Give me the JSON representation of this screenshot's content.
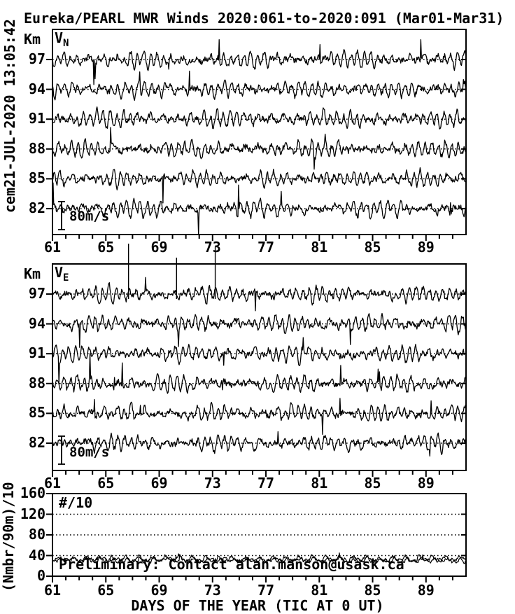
{
  "meta": {
    "timestamp_vertical": "cem21-JUL-2020 13:05:42"
  },
  "title": "Eureka/PEARL MWR Winds 2020:061-to-2020:091 (Mar01-Mar31)",
  "colors": {
    "foreground": "#000000",
    "background": "#ffffff"
  },
  "x_axis": {
    "label": "DAYS OF THE YEAR (TIC AT 0 UT)",
    "range": [
      61,
      92
    ],
    "major_ticks": [
      61,
      65,
      69,
      73,
      77,
      81,
      85,
      89
    ],
    "minor_step": 1
  },
  "wind_panels": [
    {
      "id": "vn",
      "component": "V",
      "component_sub": "N",
      "y_unit": "Km",
      "altitudes_km": [
        97,
        94,
        91,
        88,
        85,
        82
      ],
      "scale_bar_label": "80m/s",
      "scale_bar_ms": 80,
      "seed": 11,
      "spikes_above_top": []
    },
    {
      "id": "ve",
      "component": "V",
      "component_sub": "E",
      "y_unit": "Km",
      "altitudes_km": [
        97,
        94,
        91,
        88,
        85,
        82
      ],
      "scale_bar_label": "80m/s",
      "scale_bar_ms": 80,
      "seed": 57,
      "spikes_above_top": [
        {
          "day": 66.7,
          "top_y": 348
        },
        {
          "day": 70.3,
          "top_y": 368
        },
        {
          "day": 73.2,
          "top_y": 352
        }
      ]
    }
  ],
  "count_panel": {
    "ylabel": "(Nmbr/90m)/10",
    "inplot_label": "#/10",
    "yticks": [
      0,
      40,
      80,
      120,
      160
    ],
    "gridlines": [
      40,
      80,
      120
    ],
    "series": [
      {
        "seed": 91,
        "mean": 31
      },
      {
        "seed": 137,
        "mean": 33.5
      }
    ],
    "note": "Preliminary: Contact alan.manson@usask.ca"
  },
  "chart_data": [
    {
      "type": "line",
      "panel": "VN northward wind",
      "title": "Eureka/PEARL MWR Winds 2020:061-to-2020:091 (Mar01-Mar31)",
      "xlabel": "DAYS OF THE YEAR (TIC AT 0 UT)",
      "x_range": [
        61,
        92
      ],
      "x_ticks": [
        61,
        65,
        69,
        73,
        77,
        81,
        85,
        89
      ],
      "ylabel": "Km",
      "series_baselines_km": [
        97,
        94,
        91,
        88,
        85,
        82
      ],
      "amplitude_scale_bar": "80m/s",
      "series_description": "Noisy semidiurnal-tide wind oscillations about a dotted zero line at each altitude; typical amplitude 10-40 m/s, occasional spikes to ~80 m/s",
      "grid": "dotted zero line per altitude",
      "legend": "none"
    },
    {
      "type": "line",
      "panel": "VE eastward wind",
      "xlabel": "DAYS OF THE YEAR (TIC AT 0 UT)",
      "x_range": [
        61,
        92
      ],
      "x_ticks": [
        61,
        65,
        69,
        73,
        77,
        81,
        85,
        89
      ],
      "ylabel": "Km",
      "series_baselines_km": [
        97,
        94,
        91,
        88,
        85,
        82
      ],
      "amplitude_scale_bar": "80m/s",
      "series_description": "Noisy semidiurnal-tide wind oscillations about a dotted zero line at each altitude; large spikes near days 66.7, 70.3 and 73.2 exceed the panel top at 97 km",
      "grid": "dotted zero line per altitude",
      "legend": "none"
    },
    {
      "type": "line",
      "panel": "#/10 data counts",
      "xlabel": "DAYS OF THE YEAR (TIC AT 0 UT)",
      "x_range": [
        61,
        92
      ],
      "x_ticks": [
        61,
        65,
        69,
        73,
        77,
        81,
        85,
        89
      ],
      "ylabel": "(Nmbr/90m)/10",
      "ylim": [
        0,
        160
      ],
      "y_ticks": [
        0,
        40,
        80,
        120,
        160
      ],
      "grid": "dotted horizontal lines at 40, 80, 120",
      "series": [
        {
          "name": "counts",
          "approx_mean": 32,
          "approx_range": [
            22,
            48
          ]
        }
      ],
      "annotation": "Preliminary: Contact alan.manson@usask.ca"
    }
  ]
}
